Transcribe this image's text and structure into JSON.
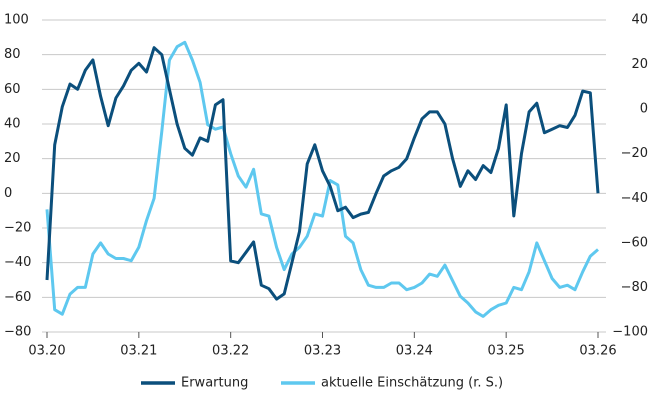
{
  "chart_data": {
    "type": "line",
    "categories": [
      "03.20",
      null,
      null,
      null,
      null,
      null,
      null,
      null,
      null,
      null,
      null,
      null,
      "03.21",
      null,
      null,
      null,
      null,
      null,
      null,
      null,
      null,
      null,
      null,
      null,
      "03.22",
      null,
      null,
      null,
      null,
      null,
      null,
      null,
      null,
      null,
      null,
      null,
      "03.23",
      null,
      null,
      null,
      null,
      null,
      null,
      null,
      null,
      null,
      null,
      null,
      "03.24",
      null,
      null,
      null,
      null,
      null,
      null,
      null,
      null,
      null,
      null,
      null,
      "03.25",
      null,
      null,
      null,
      null,
      null,
      null,
      null,
      null,
      null,
      null,
      null,
      "03.26"
    ],
    "series": [
      {
        "name": "Erwartung",
        "color": "#0b4f7c",
        "axis": "y",
        "values": [
          -50,
          28,
          50,
          63,
          60,
          71,
          77,
          56,
          39,
          55,
          62,
          71,
          75,
          70,
          84,
          80,
          60,
          40,
          26,
          22,
          32,
          30,
          51,
          54,
          -39,
          -40,
          -34,
          -28,
          -53,
          -55,
          -61,
          -58,
          -40,
          -22,
          17,
          28,
          13,
          4,
          -10,
          -8,
          -14,
          -12,
          -11,
          0,
          10,
          13,
          15,
          20,
          32,
          43,
          47,
          47,
          40,
          20,
          4,
          13,
          8,
          16,
          12,
          26,
          51,
          -13,
          23,
          47,
          52,
          35,
          37,
          39,
          38,
          45,
          59,
          58,
          0
        ]
      },
      {
        "name": "aktuelle Einschätzung (r. S.)",
        "color": "#5ec8ef",
        "axis": "y2",
        "values": [
          -45,
          -90,
          -92,
          -83,
          -80,
          -80,
          -65,
          -60,
          -65,
          -67,
          -67,
          -68,
          -62,
          -50,
          -40,
          -10,
          22,
          28,
          30,
          22,
          12,
          -7,
          -9,
          -8,
          -20,
          -30,
          -35,
          -27,
          -47,
          -48,
          -62,
          -72,
          -65,
          -62,
          -57,
          -47,
          -48,
          -32,
          -34,
          -57,
          -60,
          -72,
          -79,
          -80,
          -80,
          -78,
          -78,
          -81,
          -80,
          -78,
          -74,
          -75,
          -70,
          -77,
          -84,
          -87,
          -91,
          -93,
          -90,
          -88,
          -87,
          -80,
          -81,
          -73,
          -60,
          -68,
          -76,
          -80,
          -79,
          -81,
          -73,
          -66,
          -63
        ]
      }
    ],
    "ylim": [
      -80,
      100
    ],
    "yticks": [
      -80,
      -60,
      -40,
      -20,
      0,
      20,
      40,
      60,
      80,
      100
    ],
    "y2lim": [
      -100,
      40
    ],
    "y2ticks": [
      -100,
      -80,
      -60,
      -40,
      -20,
      0,
      20,
      40
    ],
    "grid": true,
    "legend": "bottom"
  }
}
